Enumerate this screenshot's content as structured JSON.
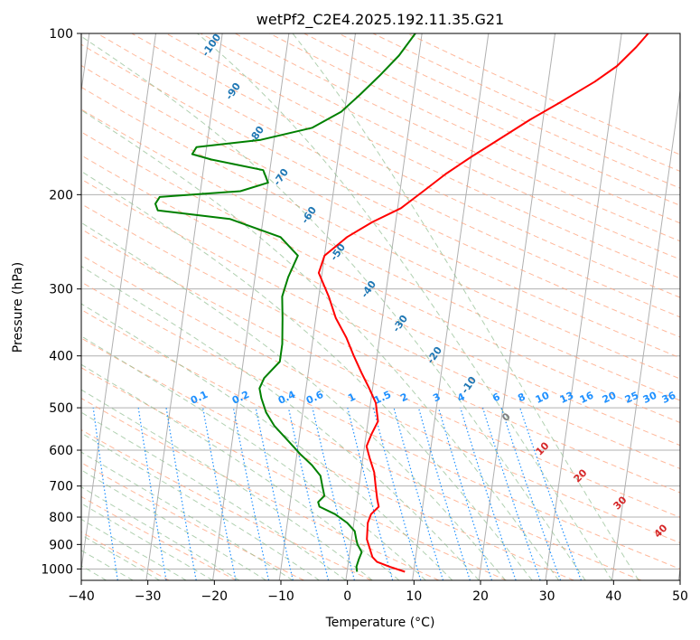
{
  "chart_data": {
    "type": "line",
    "title": "wetPf2_C2E4.2025.192.11.35.G21",
    "xlabel": "Temperature (°C)",
    "ylabel": "Pressure (hPa)",
    "xlim": [
      -40,
      50
    ],
    "ylim": [
      1050,
      100
    ],
    "y_scale": "log",
    "grid": true,
    "x_ticks": [
      "−40",
      "−30",
      "−20",
      "−10",
      "0",
      "10",
      "20",
      "30",
      "40",
      "50"
    ],
    "x_tick_values": [
      -40,
      -30,
      -20,
      -10,
      0,
      10,
      20,
      30,
      40,
      50
    ],
    "y_ticks": [
      "100",
      "200",
      "300",
      "400",
      "500",
      "600",
      "700",
      "800",
      "900",
      "1000"
    ],
    "y_tick_values": [
      100,
      200,
      300,
      400,
      500,
      600,
      700,
      800,
      900,
      1000
    ],
    "colors": {
      "temperature": "#ff0000",
      "dewpoint": "#008000",
      "isotherm": "#b0b0b0",
      "dry_adiabat": "#ffa07a",
      "moist_adiabat": "#8fbc8f",
      "mixing_ratio": "#1e90ff",
      "dry_label": "#1f77b4",
      "mix_label": "#1e90ff",
      "moist_label_neg": "#808080",
      "moist_label_pos": "#d62728"
    },
    "series": [
      {
        "key": "temperature",
        "points": [
          [
            8.7,
            1012
          ],
          [
            6.3,
            990
          ],
          [
            4.3,
            970
          ],
          [
            3.5,
            950
          ],
          [
            3.0,
            920
          ],
          [
            2.3,
            880
          ],
          [
            2.2,
            850
          ],
          [
            2.1,
            820
          ],
          [
            2.4,
            790
          ],
          [
            3.4,
            765
          ],
          [
            3.0,
            740
          ],
          [
            2.5,
            700
          ],
          [
            2.0,
            660
          ],
          [
            1.0,
            620
          ],
          [
            0.3,
            590
          ],
          [
            0.8,
            560
          ],
          [
            1.5,
            530
          ],
          [
            0.8,
            490
          ],
          [
            -0.5,
            460
          ],
          [
            -2.0,
            430
          ],
          [
            -3.5,
            400
          ],
          [
            -5.0,
            370
          ],
          [
            -7.0,
            340
          ],
          [
            -8.5,
            310
          ],
          [
            -10.5,
            280
          ],
          [
            -10.0,
            260
          ],
          [
            -7.0,
            240
          ],
          [
            -3.5,
            225
          ],
          [
            0.5,
            212
          ],
          [
            3.5,
            197
          ],
          [
            6.5,
            183
          ],
          [
            10.0,
            170
          ],
          [
            14.0,
            157
          ],
          [
            18.0,
            145
          ],
          [
            22.0,
            135
          ],
          [
            27.0,
            123
          ],
          [
            30.0,
            115
          ],
          [
            32.5,
            106
          ],
          [
            34.0,
            100
          ]
        ]
      },
      {
        "key": "dewpoint",
        "points": [
          [
            1.5,
            1012
          ],
          [
            1.3,
            990
          ],
          [
            1.5,
            960
          ],
          [
            1.8,
            930
          ],
          [
            1.0,
            900
          ],
          [
            0.7,
            880
          ],
          [
            0.3,
            850
          ],
          [
            -1.0,
            820
          ],
          [
            -3.0,
            790
          ],
          [
            -5.5,
            765
          ],
          [
            -5.8,
            750
          ],
          [
            -5.0,
            730
          ],
          [
            -5.5,
            700
          ],
          [
            -6.0,
            670
          ],
          [
            -7.5,
            640
          ],
          [
            -9.5,
            610
          ],
          [
            -12.0,
            570
          ],
          [
            -14.0,
            540
          ],
          [
            -15.5,
            510
          ],
          [
            -16.5,
            480
          ],
          [
            -17.0,
            460
          ],
          [
            -16.5,
            440
          ],
          [
            -14.5,
            410
          ],
          [
            -14.5,
            380
          ],
          [
            -15.0,
            340
          ],
          [
            -15.5,
            310
          ],
          [
            -15.0,
            285
          ],
          [
            -14.0,
            260
          ],
          [
            -17.0,
            240
          ],
          [
            -25.0,
            222
          ],
          [
            -36.0,
            214
          ],
          [
            -36.5,
            208
          ],
          [
            -36.0,
            202
          ],
          [
            -24.0,
            197
          ],
          [
            -20.0,
            190
          ],
          [
            -21.0,
            180
          ],
          [
            -29.0,
            172
          ],
          [
            -32.0,
            168
          ],
          [
            -31.5,
            163
          ],
          [
            -22.0,
            158
          ],
          [
            -14.5,
            150
          ],
          [
            -10.5,
            140
          ],
          [
            -8.0,
            130
          ],
          [
            -5.5,
            120
          ],
          [
            -3.0,
            110
          ],
          [
            -1.0,
            100
          ]
        ]
      }
    ],
    "dry_adiabat_labels": [
      "-100",
      "-90",
      "-80",
      "-70",
      "-60",
      "-50",
      "-40",
      "-30",
      "-20",
      "-10"
    ],
    "mixing_ratio_labels": [
      "0.1",
      "0.2",
      "0.4",
      "0.6",
      "1",
      "1.5",
      "2",
      "3",
      "4",
      "6",
      "8",
      "10",
      "13",
      "16",
      "20",
      "25",
      "30",
      "36"
    ],
    "moist_adiabat_labels": [
      "0",
      "10",
      "20",
      "30",
      "40"
    ]
  }
}
